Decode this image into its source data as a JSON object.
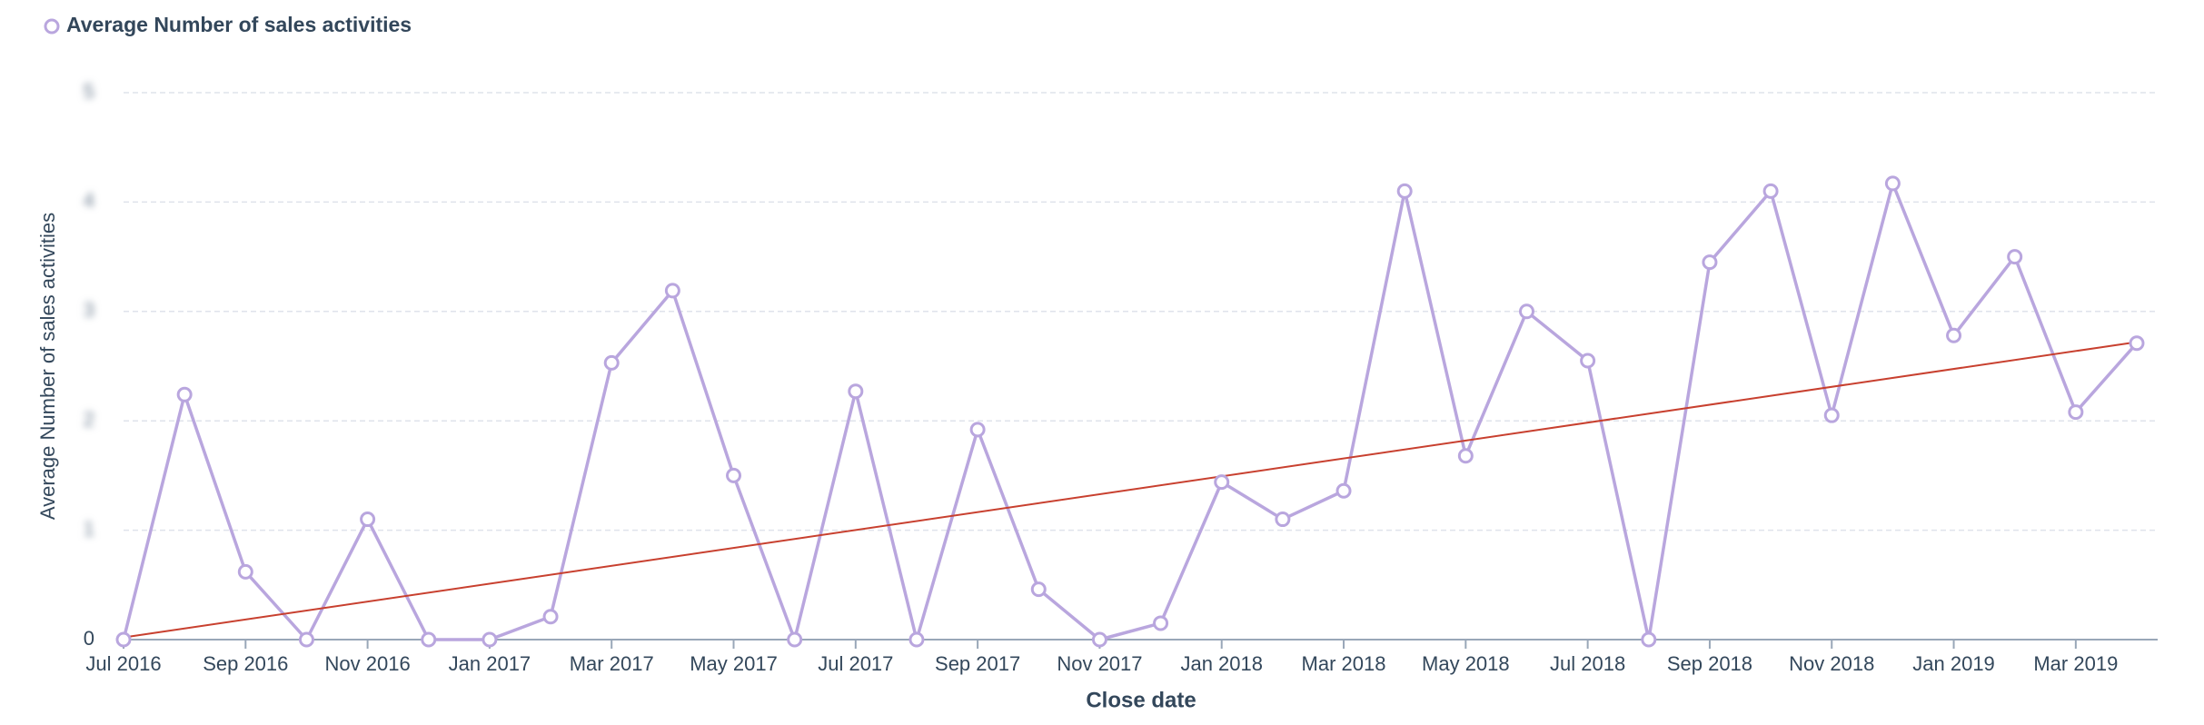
{
  "chart_data": {
    "type": "line",
    "x_label": "Close date",
    "y_label": "Average Number of sales activities",
    "categories": [
      "Jul 2016",
      null,
      "Sep 2016",
      null,
      "Nov 2016",
      null,
      "Jan 2017",
      null,
      "Mar 2017",
      null,
      "May 2017",
      null,
      "Jul 2017",
      null,
      "Sep 2017",
      null,
      "Nov 2017",
      null,
      "Jan 2018",
      null,
      "Mar 2018",
      null,
      "May 2018",
      null,
      "Jul 2018",
      null,
      "Sep 2018",
      null,
      "Nov 2018",
      null,
      "Jan 2019",
      null,
      "Mar 2019",
      null
    ],
    "series": [
      {
        "name": "Average Number of sales activities",
        "color": "#b9a6de",
        "values": [
          0,
          2.24,
          0.62,
          0,
          1.1,
          0,
          0,
          0.21,
          2.53,
          3.19,
          1.5,
          0,
          2.27,
          0,
          1.92,
          0.46,
          0,
          0.15,
          1.44,
          1.1,
          1.36,
          4.1,
          1.68,
          3.0,
          2.55,
          0,
          3.45,
          4.1,
          2.05,
          4.17,
          2.78,
          3.5,
          2.08,
          2.71
        ]
      }
    ],
    "trend": {
      "color": "#c8402f",
      "start": 0.02,
      "end": 2.72
    },
    "ylim": [
      0,
      5
    ],
    "yticks": [
      0,
      1,
      2,
      3,
      4,
      5
    ],
    "grid": true
  }
}
